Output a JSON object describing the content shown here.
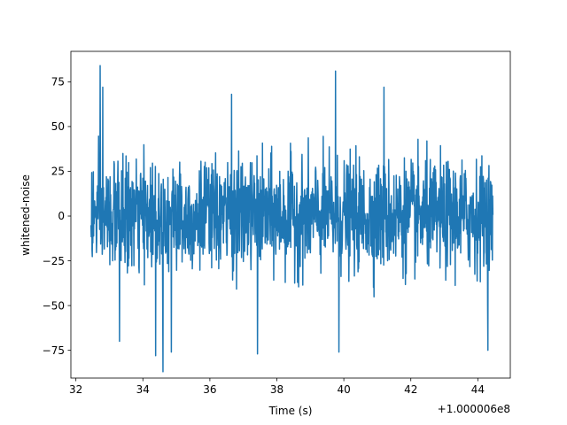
{
  "chart_data": {
    "type": "line",
    "title": "",
    "xlabel": "Time (s)",
    "ylabel": "whitened-noise",
    "x_offset_label": "+1.000006e8",
    "xlim": [
      31.85,
      44.97
    ],
    "ylim": [
      -90.5,
      92.0
    ],
    "x_ticks": [
      32,
      34,
      36,
      38,
      40,
      42,
      44
    ],
    "x_tick_labels": [
      "32",
      "34",
      "36",
      "38",
      "40",
      "42",
      "44"
    ],
    "y_ticks": [
      -75,
      -50,
      -25,
      0,
      25,
      50,
      75
    ],
    "y_tick_labels": [
      "−75",
      "−50",
      "−25",
      "0",
      "25",
      "50",
      "75"
    ],
    "grid": false,
    "series": [
      {
        "color": "#1f77b4",
        "x_start": 32.45,
        "x_end": 44.45,
        "sample_count": 1536,
        "noise_std": 15,
        "peaks": [
          {
            "x": 32.72,
            "y": 84
          },
          {
            "x": 39.75,
            "y": 81
          },
          {
            "x": 34.6,
            "y": -87
          },
          {
            "x": 34.38,
            "y": -78
          },
          {
            "x": 32.8,
            "y": 72
          },
          {
            "x": 36.65,
            "y": 68
          },
          {
            "x": 41.2,
            "y": 72
          },
          {
            "x": 37.42,
            "y": -77
          },
          {
            "x": 39.85,
            "y": -76
          },
          {
            "x": 44.3,
            "y": -75
          },
          {
            "x": 33.3,
            "y": -70
          },
          {
            "x": 34.85,
            "y": -76
          }
        ]
      }
    ]
  }
}
